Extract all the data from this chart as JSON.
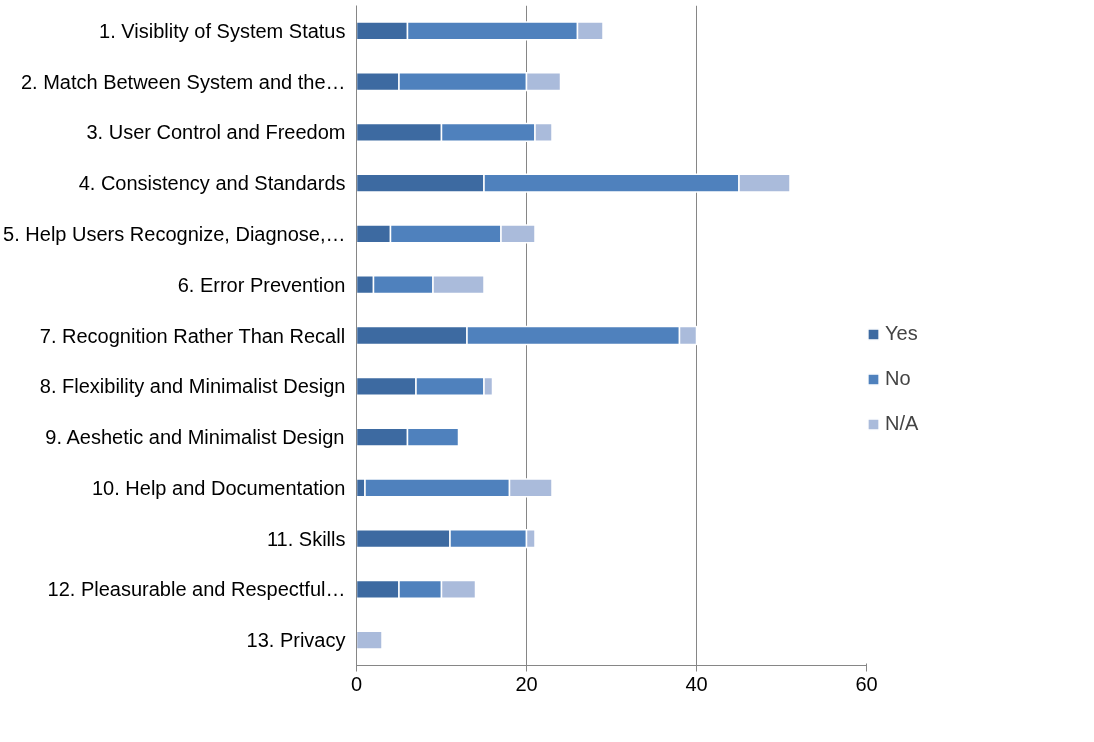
{
  "chart_data": {
    "type": "bar",
    "orientation": "horizontal",
    "stacked": true,
    "categories": [
      "1. Visiblity of System Status",
      "2. Match Between System and the…",
      "3. User Control and Freedom",
      "4. Consistency and Standards",
      "5. Help Users Recognize, Diagnose,…",
      "6. Error Prevention",
      "7. Recognition Rather Than Recall",
      "8. Flexibility and Minimalist Design",
      "9. Aeshetic and Minimalist Design",
      "10. Help and Documentation",
      "11. Skills",
      "12. Pleasurable and Respectful…",
      "13. Privacy"
    ],
    "series": [
      {
        "name": "Yes",
        "color": "#3d6aa1",
        "values": [
          6,
          5,
          10,
          15,
          4,
          2,
          13,
          7,
          6,
          1,
          11,
          5,
          0
        ]
      },
      {
        "name": "No",
        "color": "#4f81bd",
        "values": [
          20,
          15,
          11,
          30,
          13,
          7,
          25,
          8,
          6,
          17,
          9,
          5,
          0
        ]
      },
      {
        "name": "N/A",
        "color": "#aabbdb",
        "values": [
          3,
          4,
          2,
          6,
          4,
          6,
          2,
          1,
          0,
          5,
          1,
          4,
          3
        ]
      }
    ],
    "xlim": [
      0,
      60
    ],
    "xticks": [
      0,
      20,
      40,
      60
    ],
    "grid": "x",
    "legend": "right"
  }
}
